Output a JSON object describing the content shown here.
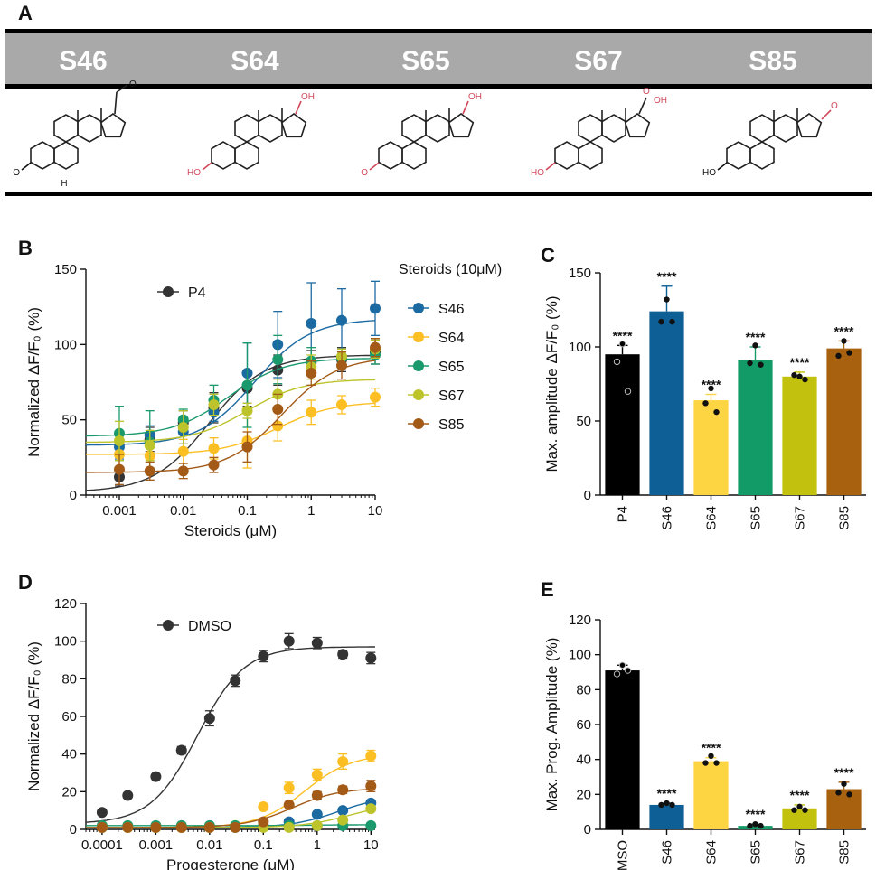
{
  "panel_labels": {
    "a": "A",
    "b": "B",
    "c": "C",
    "d": "D",
    "e": "E"
  },
  "structures": {
    "header_labels": [
      "S46",
      "S64",
      "S65",
      "S67",
      "S85"
    ],
    "atom_labels": {
      "oxo": "O",
      "hydroxy": "OH",
      "h": "H",
      "hydroxy_left": "HO",
      "carboxylic": "OH"
    }
  },
  "chart_data": [
    {
      "id": "B",
      "type": "line",
      "xscale": "log",
      "xlabel": "Steroids (μM)",
      "ylabel": "Normalized ΔF/F₀ (%)",
      "xlim": [
        0.0003,
        10
      ],
      "ylim": [
        0,
        150
      ],
      "xticks": [
        0.001,
        0.01,
        0.1,
        1,
        10
      ],
      "xtick_labels": [
        "0.001",
        "0.01",
        "0.1",
        "1",
        "10"
      ],
      "yticks": [
        0,
        50,
        100,
        150
      ],
      "legend_title": "Steroids (10μM)",
      "x": [
        0.001,
        0.003,
        0.01,
        0.03,
        0.1,
        0.3,
        1,
        3,
        10
      ],
      "series": [
        {
          "name": "P4",
          "color": "#333333",
          "values": [
            12,
            37,
            48,
            58,
            71,
            83,
            88,
            90,
            95
          ],
          "err": [
            6,
            8,
            8,
            10,
            12,
            10,
            8,
            8,
            8
          ],
          "curve": {
            "bottom": 2,
            "top": 93,
            "ec50": 0.025
          }
        },
        {
          "name": "S46",
          "color": "#1b6aa2",
          "values": [
            32,
            40,
            42,
            55,
            81,
            100,
            114,
            116,
            124
          ],
          "err": [
            8,
            6,
            8,
            6,
            20,
            22,
            27,
            21,
            18
          ],
          "curve": {
            "bottom": 33,
            "top": 117,
            "ec50": 0.13
          }
        },
        {
          "name": "S64",
          "color": "#fbbf24",
          "values": [
            27,
            26,
            29,
            31,
            36,
            46,
            55,
            60,
            65
          ],
          "err": [
            10,
            8,
            8,
            7,
            18,
            10,
            8,
            6,
            6
          ],
          "curve": {
            "bottom": 27,
            "top": 62,
            "ec50": 0.3
          }
        },
        {
          "name": "S65",
          "color": "#1a9a6c",
          "values": [
            41,
            35,
            50,
            63,
            73,
            90,
            89,
            91,
            93
          ],
          "err": [
            18,
            21,
            7,
            10,
            28,
            16,
            9,
            6,
            6
          ],
          "curve": {
            "bottom": 39,
            "top": 91,
            "ec50": 0.05
          }
        },
        {
          "name": "S67",
          "color": "#bdc42b",
          "values": [
            36,
            33,
            45,
            60,
            56,
            67,
            85,
            92,
            97
          ],
          "err": [
            13,
            10,
            11,
            7,
            5,
            10,
            8,
            5,
            6
          ],
          "curve": {
            "bottom": 35,
            "top": 77,
            "ec50": 0.1
          }
        },
        {
          "name": "S85",
          "color": "#a35a17",
          "values": [
            17,
            16,
            16,
            20,
            32,
            57,
            81,
            86,
            98
          ],
          "err": [
            10,
            6,
            5,
            5,
            10,
            10,
            8,
            9,
            6
          ],
          "curve": {
            "bottom": 15,
            "top": 92,
            "ec50": 0.35
          }
        }
      ]
    },
    {
      "id": "C",
      "type": "bar",
      "ylabel": "Max. amplitude ΔF/F₀ (%)",
      "ylim": [
        0,
        150
      ],
      "yticks": [
        0,
        50,
        100,
        150
      ],
      "categories": [
        "P4",
        "S46",
        "S64",
        "S65",
        "S67",
        "S85"
      ],
      "values": [
        95,
        124,
        64,
        91,
        80,
        99
      ],
      "err": [
        6,
        17,
        4,
        9,
        3,
        5
      ],
      "colors": [
        "#000000",
        "#0f5f97",
        "#fdd442",
        "#139b67",
        "#c2c20e",
        "#a8620f"
      ],
      "points": [
        [
          102,
          90,
          70
        ],
        [
          132,
          117,
          117
        ],
        [
          72,
          62,
          56
        ],
        [
          101,
          89,
          88
        ],
        [
          80,
          81,
          78
        ],
        [
          104,
          94,
          96
        ]
      ],
      "significance": [
        "****",
        "****",
        "****",
        "****",
        "****",
        "****"
      ]
    },
    {
      "id": "D",
      "type": "line",
      "xscale": "log",
      "xlabel": "Progesterone (μM)",
      "ylabel": "Normalized ΔF/F₀ (%)",
      "xlim": [
        5e-05,
        12
      ],
      "ylim": [
        0,
        120
      ],
      "xticks": [
        0.0001,
        0.001,
        0.01,
        0.1,
        1,
        10
      ],
      "xtick_labels": [
        "0.0001",
        "0.001",
        "0.01",
        "0.1",
        "1",
        "10"
      ],
      "yticks": [
        0,
        20,
        40,
        60,
        80,
        100,
        120
      ],
      "legend_title": "",
      "x": [
        0.0001,
        0.0003,
        0.001,
        0.003,
        0.01,
        0.03,
        0.1,
        0.3,
        1,
        3,
        10
      ],
      "series": [
        {
          "name": "DMSO",
          "color": "#333333",
          "values": [
            9,
            18,
            28,
            42,
            59,
            79,
            92,
            100,
            99,
            93,
            91
          ],
          "err": [
            1,
            1,
            1,
            2,
            4,
            3,
            3,
            4,
            3,
            2,
            3
          ],
          "curve": {
            "bottom": 3,
            "top": 97,
            "ec50": 0.006
          }
        },
        {
          "name": "S46",
          "color": "#1b6aa2",
          "values": [
            1,
            1,
            1,
            1,
            1,
            1,
            2,
            4,
            8,
            10,
            14
          ],
          "err": [
            0,
            0,
            0,
            0,
            0,
            0,
            1,
            1,
            1,
            1,
            1
          ],
          "curve": {
            "bottom": 1,
            "top": 18,
            "ec50": 2.5
          }
        },
        {
          "name": "S64",
          "color": "#fbbf24",
          "values": [
            1,
            1,
            1,
            1,
            1,
            2,
            12,
            22,
            29,
            36,
            39
          ],
          "err": [
            0,
            0,
            0,
            0,
            0,
            1,
            1,
            3,
            3,
            4,
            3
          ],
          "curve": {
            "bottom": 1,
            "top": 40,
            "ec50": 0.6
          }
        },
        {
          "name": "S65",
          "color": "#1a9a6c",
          "values": [
            2,
            2,
            2,
            2,
            2,
            2,
            2,
            2,
            2,
            2,
            2
          ],
          "err": [
            0,
            0,
            0,
            0,
            0,
            0,
            0,
            0,
            0,
            0,
            0
          ],
          "curve": {
            "bottom": 2,
            "top": 2.5,
            "ec50": 1
          }
        },
        {
          "name": "S67",
          "color": "#bdc42b",
          "values": [
            1,
            1,
            1,
            1,
            1,
            1,
            1,
            1,
            2,
            5,
            11
          ],
          "err": [
            0,
            0,
            0,
            0,
            0,
            0,
            0,
            0,
            0,
            1,
            1
          ],
          "curve": {
            "bottom": 1,
            "top": 14,
            "ec50": 4
          }
        },
        {
          "name": "S85",
          "color": "#a35a17",
          "values": [
            1,
            1,
            1,
            1,
            1,
            1,
            4,
            13,
            18,
            21,
            23
          ],
          "err": [
            0,
            0,
            0,
            0,
            0,
            0,
            1,
            1,
            2,
            2,
            3
          ],
          "curve": {
            "bottom": 1,
            "top": 22,
            "ec50": 0.35
          }
        }
      ],
      "legend_entries": [
        "DMSO"
      ]
    },
    {
      "id": "E",
      "type": "bar",
      "ylabel": "Max. Prog. Amplitude (%)",
      "ylim": [
        0,
        120
      ],
      "yticks": [
        0,
        20,
        40,
        60,
        80,
        100,
        120
      ],
      "categories": [
        "DMSO",
        "S46",
        "S64",
        "S65",
        "S67",
        "S85"
      ],
      "values": [
        91,
        14,
        39,
        2,
        12,
        23
      ],
      "err": [
        3,
        1,
        2,
        1,
        2,
        4
      ],
      "colors": [
        "#000000",
        "#0f5f97",
        "#fdd442",
        "#139b67",
        "#c2c20e",
        "#a8620f"
      ],
      "points": [
        [
          94,
          89,
          91
        ],
        [
          15,
          14,
          14
        ],
        [
          42,
          38,
          38
        ],
        [
          3,
          2,
          2
        ],
        [
          13,
          11,
          11
        ],
        [
          26,
          21,
          20
        ]
      ],
      "significance": [
        "",
        "****",
        "****",
        "****",
        "****",
        "****"
      ]
    }
  ]
}
